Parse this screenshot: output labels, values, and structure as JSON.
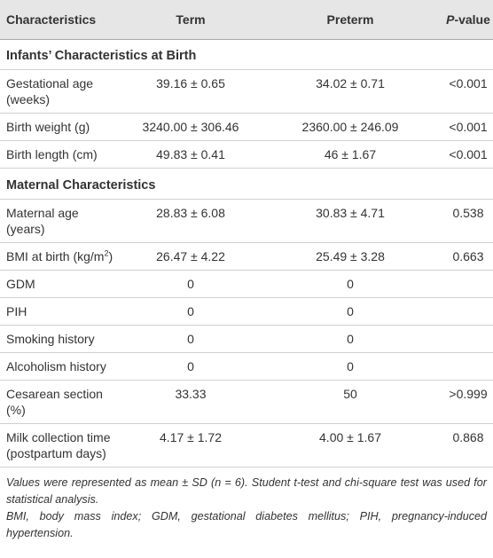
{
  "table": {
    "columns": [
      "Characteristics",
      "Term",
      "Preterm",
      [
        {
          "text": "P",
          "format": "italic"
        },
        "-value"
      ]
    ],
    "rows": [
      {
        "section": "Infants’ Characteristics at Birth"
      },
      {
        "cells": [
          "Gestational age (weeks)",
          "39.16 ± 0.65",
          "34.02 ± 0.71",
          "<0.001"
        ]
      },
      {
        "cells": [
          "Birth weight (g)",
          "3240.00 ± 306.46",
          "2360.00 ± 246.09",
          "<0.001"
        ]
      },
      {
        "cells": [
          "Birth length (cm)",
          "49.83 ± 0.41",
          "46 ± 1.67",
          "<0.001"
        ]
      },
      {
        "section": "Maternal Characteristics"
      },
      {
        "cells": [
          "Maternal age (years)",
          "28.83 ± 6.08",
          "30.83 ± 4.71",
          "0.538"
        ]
      },
      {
        "cells": [
          [
            "BMI at birth (kg/m",
            {
              "text": "2",
              "format": "sup"
            },
            ")"
          ],
          "26.47 ± 4.22",
          "25.49 ± 3.28",
          "0.663"
        ]
      },
      {
        "cells": [
          "GDM",
          "0",
          "0",
          null
        ]
      },
      {
        "cells": [
          "PIH",
          "0",
          "0",
          null
        ]
      },
      {
        "cells": [
          "Smoking history",
          "0",
          "0",
          null
        ]
      },
      {
        "cells": [
          "Alcoholism history",
          "0",
          "0",
          null
        ]
      },
      {
        "cells": [
          "Cesarean section (%)",
          "33.33",
          "50",
          ">0.999"
        ]
      },
      {
        "cells": [
          "Milk collection time (postpartum days)",
          "4.17 ± 1.72",
          "4.00 ± 1.67",
          "0.868"
        ]
      }
    ]
  },
  "footnotes": [
    "Values were represented as mean ± SD (n = 6). Student t-test and chi-square test was used for statistical analysis.",
    "BMI, body mass index; GDM, gestational diabetes mellitus; PIH, pregnancy-induced hypertension."
  ]
}
